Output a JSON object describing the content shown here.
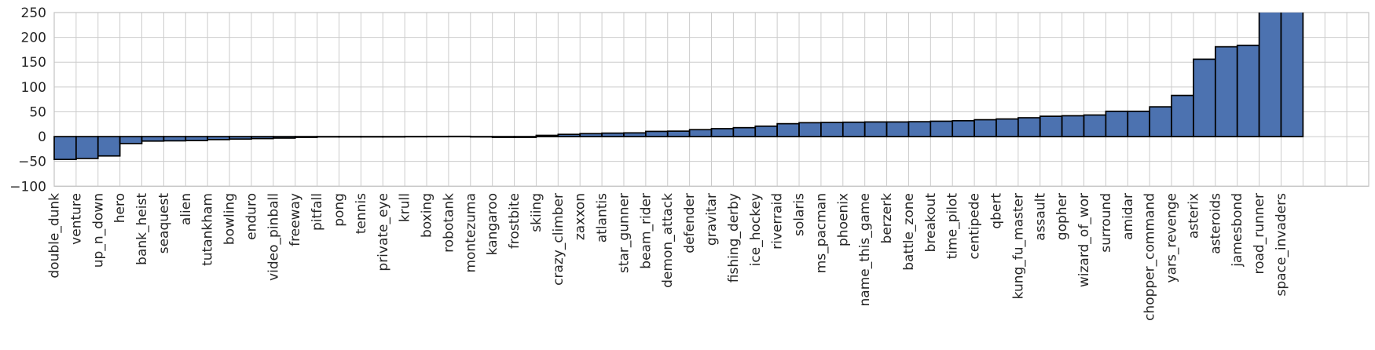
{
  "chart_data": {
    "type": "bar",
    "title": "",
    "xlabel": "",
    "ylabel": "",
    "categories": [
      "double_dunk",
      "venture",
      "up_n_down",
      "hero",
      "bank_heist",
      "seaquest",
      "alien",
      "tutankham",
      "bowling",
      "enduro",
      "video_pinball",
      "freeway",
      "pitfall",
      "pong",
      "tennis",
      "private_eye",
      "krull",
      "boxing",
      "robotank",
      "montezuma",
      "kangaroo",
      "frostbite",
      "skiing",
      "crazy_climber",
      "zaxxon",
      "atlantis",
      "star_gunner",
      "beam_rider",
      "demon_attack",
      "defender",
      "gravitar",
      "fishing_derby",
      "ice_hockey",
      "riverraid",
      "solaris",
      "ms_pacman",
      "phoenix",
      "name_this_game",
      "berzerk",
      "battle_zone",
      "breakout",
      "time_pilot",
      "centipede",
      "qbert",
      "kung_fu_master",
      "assault",
      "gopher",
      "wizard_of_wor",
      "surround",
      "amidar",
      "chopper_command",
      "yars_revenge",
      "asterix",
      "asteroids",
      "jamesbond",
      "road_runner",
      "space_invaders"
    ],
    "values": [
      -46,
      -44,
      -39,
      -14,
      -9,
      -8.5,
      -8,
      -6,
      -5,
      -4,
      -3,
      -1.5,
      -0.3,
      -0.3,
      -0.3,
      -0.3,
      0.3,
      0.4,
      0.5,
      -0.5,
      -1.5,
      -1.5,
      2.5,
      4.5,
      6,
      7,
      7.5,
      10.5,
      11,
      14,
      16,
      18,
      21,
      26,
      28,
      28.5,
      29,
      29.5,
      29.5,
      30,
      31,
      32,
      34,
      35.5,
      38,
      41,
      42,
      43.5,
      51,
      51,
      60,
      83,
      156,
      181,
      184,
      250,
      250
    ],
    "clipped_above": [
      "road_runner",
      "space_invaders"
    ],
    "ylim": [
      -100,
      250
    ],
    "ytick_values": [
      250,
      200,
      150,
      100,
      50,
      0,
      -50,
      -100
    ],
    "ytick_labels": [
      "250",
      "200",
      "150",
      "100",
      "50",
      "0",
      "−50",
      "−100"
    ],
    "x_slots": 60,
    "grid": true,
    "legend": "none",
    "bar_color": "#4C72B0",
    "bar_edge_color": "#000000",
    "grid_color": "#cccccc",
    "spine_color": "#c3c3c3",
    "text_color": "#262626"
  }
}
